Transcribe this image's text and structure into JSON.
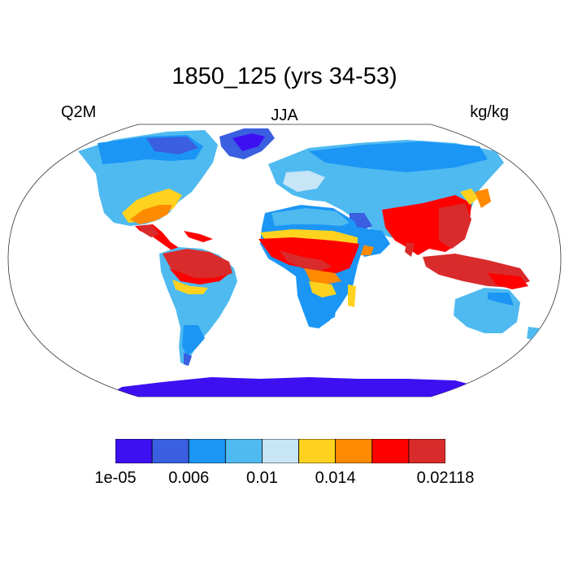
{
  "title": "1850_125 (yrs 34-53)",
  "left_label": "Q2M",
  "center_label": "JJA",
  "right_label": "kg/kg",
  "colorbar": {
    "colors": [
      "#3d10f2",
      "#3a5fe0",
      "#1b96f5",
      "#4fbaf0",
      "#c7e5f6",
      "#ffd21f",
      "#ff8a00",
      "#ff0000",
      "#d92b2b"
    ],
    "labels": [
      "1e-05",
      "0.006",
      "0.01",
      "0.014",
      "0.02118"
    ]
  },
  "colors": {
    "ocean": "#ffffff",
    "coast": "#000000",
    "antarctica": "#3d10f2"
  }
}
